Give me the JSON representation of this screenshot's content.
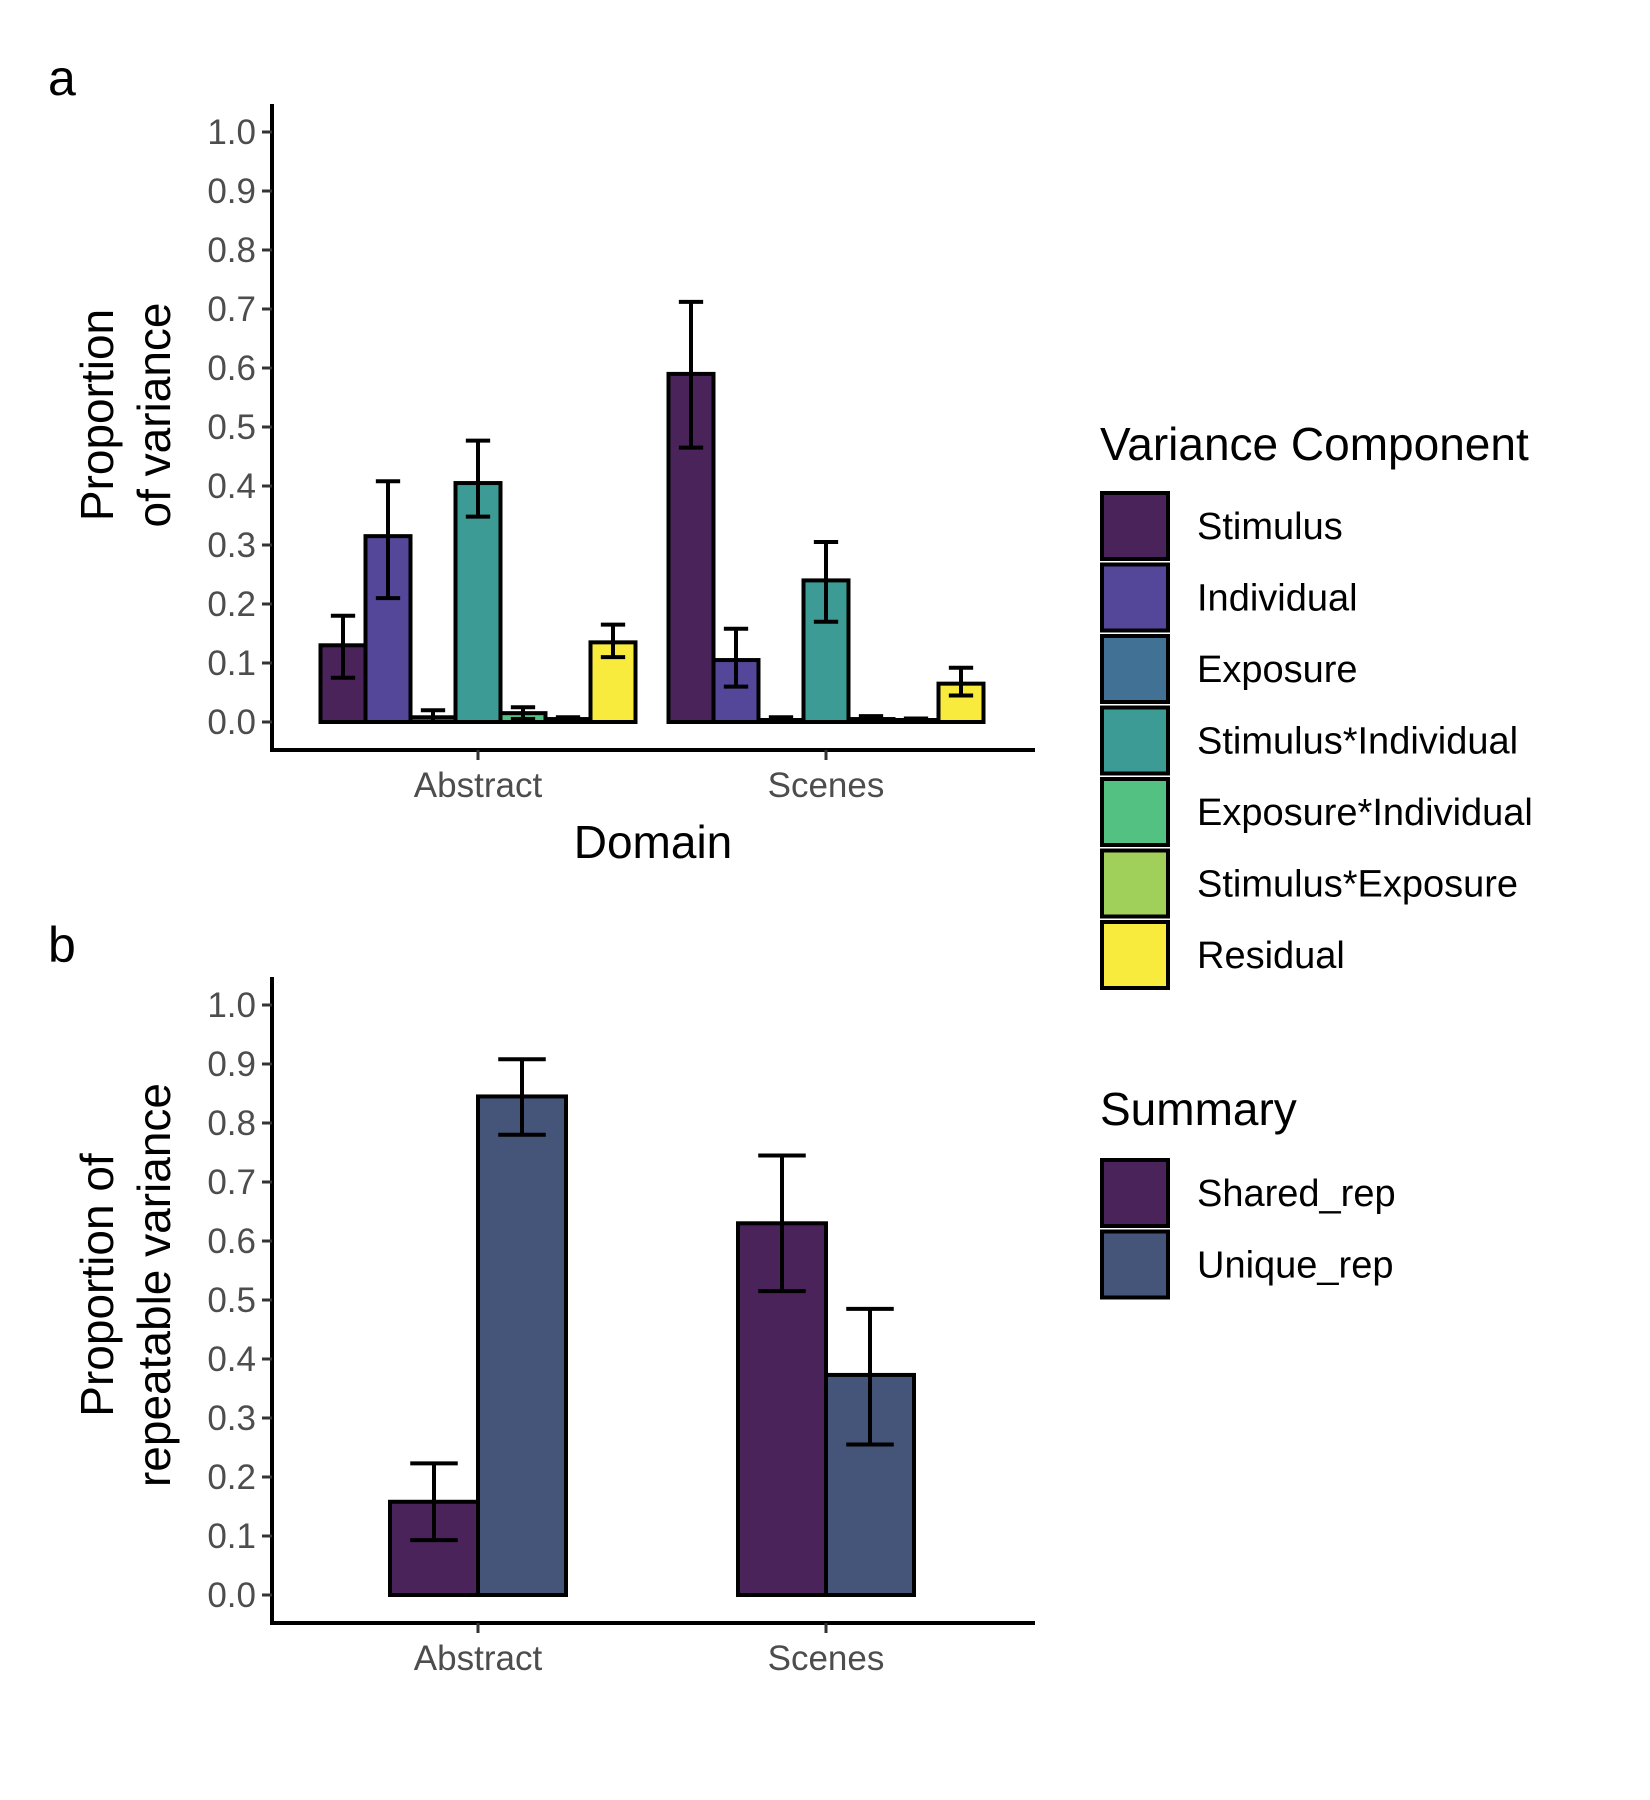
{
  "panels": {
    "a": {
      "label": "a"
    },
    "b": {
      "label": "b"
    }
  },
  "legends": {
    "variance_component": {
      "title": "Variance Component",
      "items": [
        {
          "label": "Stimulus",
          "color": "#4a235a"
        },
        {
          "label": "Individual",
          "color": "#54479a"
        },
        {
          "label": "Exposure",
          "color": "#417194"
        },
        {
          "label": "Stimulus*Individual",
          "color": "#3c9b95"
        },
        {
          "label": "Exposure*Individual",
          "color": "#52c181"
        },
        {
          "label": "Stimulus*Exposure",
          "color": "#a1d05a"
        },
        {
          "label": "Residual",
          "color": "#f8eb3d"
        }
      ]
    },
    "summary": {
      "title": "Summary",
      "items": [
        {
          "label": "Shared_rep",
          "color": "#4a235a"
        },
        {
          "label": "Unique_rep",
          "color": "#45557a"
        }
      ]
    }
  },
  "chart_data": [
    {
      "type": "bar",
      "panel": "a",
      "xlabel": "Domain",
      "ylabel": [
        "Proportion",
        "of variance"
      ],
      "ylim": [
        0,
        1.0
      ],
      "yticks": [
        "0.0",
        "0.1",
        "0.2",
        "0.3",
        "0.4",
        "0.5",
        "0.6",
        "0.7",
        "0.8",
        "0.9",
        "1.0"
      ],
      "categories": [
        "Abstract",
        "Scenes"
      ],
      "grid": false,
      "legend": "right",
      "error_bars": true,
      "series": [
        {
          "name": "Stimulus",
          "values": [
            0.13,
            0.59
          ],
          "err_low": [
            0.075,
            0.465
          ],
          "err_high": [
            0.18,
            0.712
          ]
        },
        {
          "name": "Individual",
          "values": [
            0.315,
            0.105
          ],
          "err_low": [
            0.21,
            0.06
          ],
          "err_high": [
            0.408,
            0.158
          ]
        },
        {
          "name": "Exposure",
          "values": [
            0.008,
            0.003
          ],
          "err_low": [
            0.0,
            0.0
          ],
          "err_high": [
            0.02,
            0.008
          ]
        },
        {
          "name": "Stimulus*Individual",
          "values": [
            0.405,
            0.24
          ],
          "err_low": [
            0.348,
            0.17
          ],
          "err_high": [
            0.477,
            0.305
          ]
        },
        {
          "name": "Exposure*Individual",
          "values": [
            0.015,
            0.005
          ],
          "err_low": [
            0.005,
            0.0
          ],
          "err_high": [
            0.025,
            0.01
          ]
        },
        {
          "name": "Stimulus*Exposure",
          "values": [
            0.005,
            0.003
          ],
          "err_low": [
            0.0,
            0.0
          ],
          "err_high": [
            0.008,
            0.006
          ]
        },
        {
          "name": "Residual",
          "values": [
            0.135,
            0.065
          ],
          "err_low": [
            0.11,
            0.045
          ],
          "err_high": [
            0.165,
            0.092
          ]
        }
      ]
    },
    {
      "type": "bar",
      "panel": "b",
      "xlabel": "",
      "ylabel": [
        "Proportion of",
        "repeatable variance"
      ],
      "ylim": [
        0,
        1.0
      ],
      "yticks": [
        "0.0",
        "0.1",
        "0.2",
        "0.3",
        "0.4",
        "0.5",
        "0.6",
        "0.7",
        "0.8",
        "0.9",
        "1.0"
      ],
      "categories": [
        "Abstract",
        "Scenes"
      ],
      "grid": false,
      "legend": "right",
      "error_bars": true,
      "series": [
        {
          "name": "Shared_rep",
          "values": [
            0.158,
            0.63
          ],
          "err_low": [
            0.093,
            0.515
          ],
          "err_high": [
            0.223,
            0.745
          ]
        },
        {
          "name": "Unique_rep",
          "values": [
            0.845,
            0.373
          ],
          "err_low": [
            0.78,
            0.255
          ],
          "err_high": [
            0.908,
            0.485
          ]
        }
      ]
    }
  ]
}
